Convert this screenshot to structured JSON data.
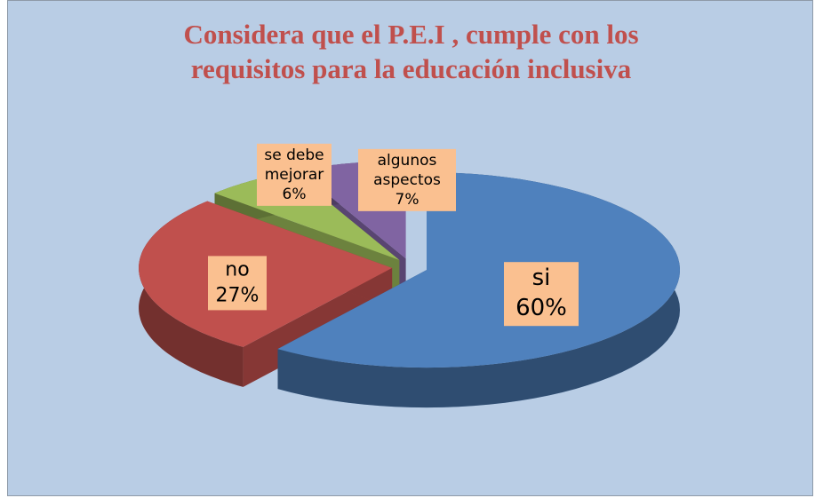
{
  "chart_data": {
    "type": "pie3d",
    "title": "Considera que el P.E.I , cumple con los requisitos para la educación inclusiva",
    "categories": [
      "si",
      "no",
      "se debe mejorar",
      "algunos aspectos"
    ],
    "values": [
      60,
      27,
      6,
      7
    ],
    "value_labels": [
      "60%",
      "27%",
      "6%",
      "7%"
    ],
    "colors": [
      "#4f81bd",
      "#c0504d",
      "#9bbb59",
      "#8064a2"
    ]
  }
}
